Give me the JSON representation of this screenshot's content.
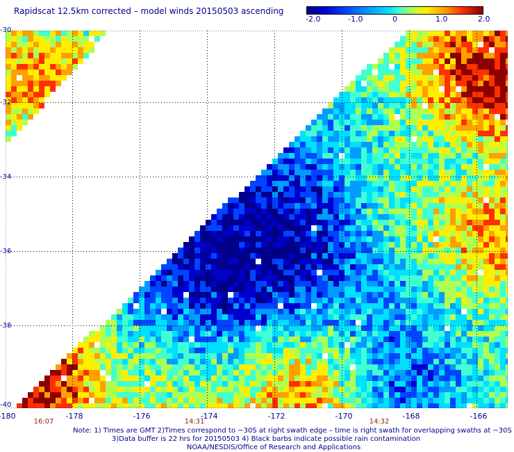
{
  "title": "Rapidscat 12.5km corrected – model winds 20150503 ascending",
  "colorbar": {
    "ticks": [
      "-2.0",
      "-1.0",
      "0",
      "1.0",
      "2.0"
    ],
    "colors": [
      "#00008b",
      "#0000cd",
      "#0044ff",
      "#009cff",
      "#00e0ff",
      "#40ffd0",
      "#b0ff50",
      "#ffee00",
      "#ffa000",
      "#ff3000",
      "#8b0000"
    ]
  },
  "latitude_labels": [
    "-30",
    "-32",
    "-34",
    "-36",
    "-38",
    "-40"
  ],
  "longitude_labels": [
    "-180",
    "-178",
    "-176",
    "-174",
    "-172",
    "-170",
    "-168",
    "-166"
  ],
  "times": [
    "16:07",
    "14:31",
    "14:32"
  ],
  "notes": [
    "Note: 1) Times are GMT 2)Times correspond to ~30S at right swath edge – time is right swath for overlapping swaths at ~30S",
    "3)Data buffer is 22 hrs for 20150503 4) Black barbs indicate possible rain contamination",
    "NOAA/NESDIS/Office of Research and Applications"
  ]
}
